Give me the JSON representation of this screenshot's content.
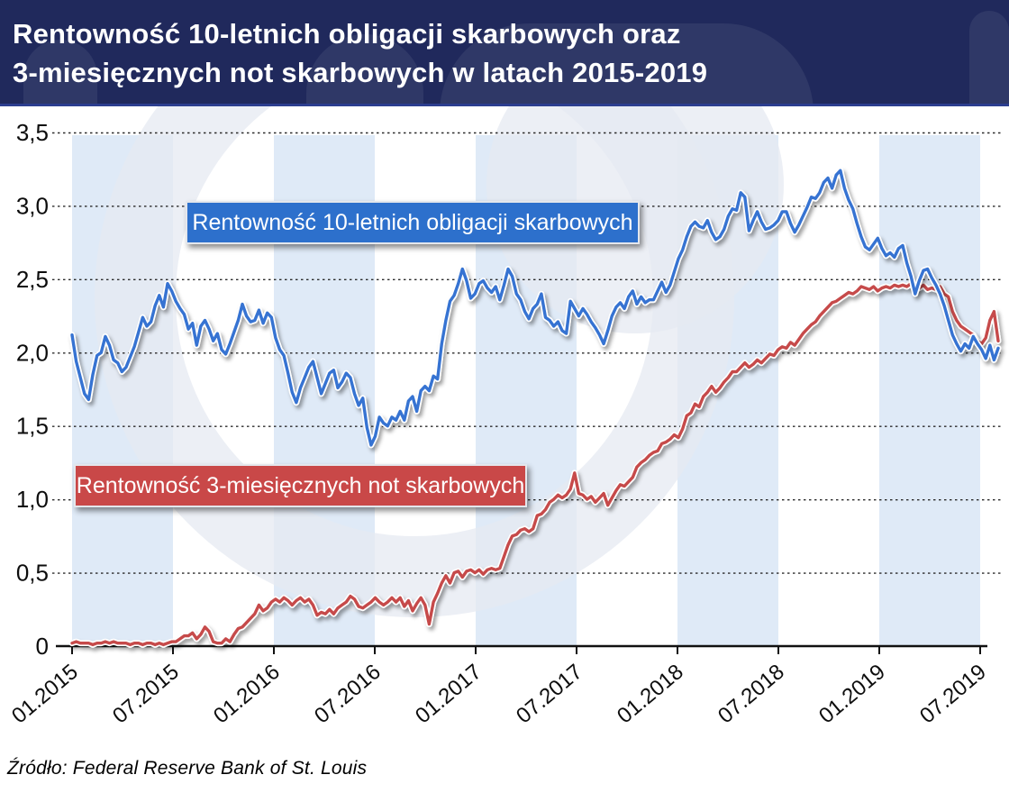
{
  "header": {
    "title_line1": "Rentowność 10-letnich obligacji skarbowych oraz",
    "title_line2": "3-miesięcznych not skarbowych w latach 2015-2019"
  },
  "source_label": "Źródło: Federal Reserve Bank of St. Louis",
  "colors": {
    "header_bg": "#20295c",
    "bond_line": "#3673d2",
    "note_line": "#c64a4a",
    "legend_bond_bg": "#2d70cc",
    "legend_note_bg": "#c94848",
    "stripe": "rgba(185,208,238,0.45)",
    "watermark": "rgba(229,234,242,0.75)",
    "grid": "#2b2b2b",
    "axis": "#111111"
  },
  "chart_data": {
    "type": "line",
    "title": "Rentowność 10-letnich obligacji skarbowych oraz 3-miesięcznych not skarbowych w latach 2015-2019",
    "xlabel": "",
    "ylabel": "",
    "ylim": [
      0,
      3.5
    ],
    "y_tick_values": [
      3.5,
      3.0,
      2.5,
      2.0,
      1.5,
      1.0,
      0.5,
      0
    ],
    "y_tick_labels": [
      "3,5",
      "3,0",
      "2,5",
      "2,0",
      "1,5",
      "1,0",
      "0,5",
      "0"
    ],
    "x_tick_labels": [
      "01.2015",
      "07.2015",
      "01.2016",
      "07.2016",
      "01.2017",
      "07.2017",
      "01.2018",
      "07.2018",
      "01.2019",
      "07.2019"
    ],
    "grid": "dotted-horizontal",
    "legend_position": "inside-callouts",
    "source": "Federal Reserve Bank of St. Louis",
    "sampling": "weekly, 01.2015 - 08.2019, values in percent",
    "series": [
      {
        "name": "Rentowność 10-letnich obligacji skarbowych",
        "color": "#3673d2",
        "values": [
          2.12,
          1.94,
          1.83,
          1.72,
          1.68,
          1.85,
          1.98,
          2.0,
          2.11,
          2.05,
          1.95,
          1.93,
          1.87,
          1.9,
          1.97,
          2.04,
          2.14,
          2.24,
          2.18,
          2.21,
          2.32,
          2.39,
          2.31,
          2.47,
          2.42,
          2.35,
          2.3,
          2.26,
          2.16,
          2.2,
          2.05,
          2.18,
          2.22,
          2.16,
          2.08,
          2.13,
          2.02,
          1.99,
          2.06,
          2.14,
          2.22,
          2.33,
          2.25,
          2.21,
          2.22,
          2.29,
          2.2,
          2.27,
          2.24,
          2.1,
          2.02,
          1.98,
          1.86,
          1.73,
          1.66,
          1.76,
          1.83,
          1.9,
          1.94,
          1.83,
          1.72,
          1.79,
          1.86,
          1.88,
          1.76,
          1.8,
          1.86,
          1.83,
          1.72,
          1.64,
          1.69,
          1.49,
          1.37,
          1.43,
          1.56,
          1.52,
          1.5,
          1.56,
          1.54,
          1.6,
          1.54,
          1.67,
          1.7,
          1.6,
          1.74,
          1.77,
          1.74,
          1.84,
          1.82,
          2.06,
          2.22,
          2.35,
          2.39,
          2.47,
          2.57,
          2.49,
          2.37,
          2.4,
          2.47,
          2.49,
          2.44,
          2.41,
          2.45,
          2.36,
          2.46,
          2.57,
          2.52,
          2.4,
          2.36,
          2.28,
          2.23,
          2.3,
          2.33,
          2.4,
          2.24,
          2.22,
          2.18,
          2.21,
          2.15,
          2.13,
          2.35,
          2.3,
          2.25,
          2.3,
          2.26,
          2.21,
          2.17,
          2.12,
          2.06,
          2.15,
          2.25,
          2.31,
          2.34,
          2.3,
          2.38,
          2.42,
          2.33,
          2.38,
          2.34,
          2.36,
          2.36,
          2.42,
          2.48,
          2.41,
          2.46,
          2.55,
          2.64,
          2.7,
          2.79,
          2.86,
          2.89,
          2.86,
          2.85,
          2.9,
          2.82,
          2.77,
          2.79,
          2.84,
          2.93,
          2.98,
          2.97,
          3.09,
          3.06,
          2.83,
          2.9,
          2.96,
          2.89,
          2.84,
          2.85,
          2.87,
          2.9,
          2.96,
          2.96,
          2.88,
          2.82,
          2.87,
          2.93,
          2.99,
          3.06,
          3.05,
          3.09,
          3.16,
          3.19,
          3.12,
          3.21,
          3.24,
          3.12,
          3.04,
          2.98,
          2.88,
          2.79,
          2.72,
          2.7,
          2.74,
          2.78,
          2.71,
          2.66,
          2.68,
          2.65,
          2.71,
          2.73,
          2.61,
          2.52,
          2.4,
          2.49,
          2.56,
          2.57,
          2.51,
          2.46,
          2.4,
          2.32,
          2.22,
          2.12,
          2.06,
          2.01,
          2.06,
          2.03,
          2.11,
          2.06,
          2.02,
          1.96,
          2.05,
          1.95,
          2.03
        ]
      },
      {
        "name": "Rentowność 3-miesięcznych not skarbowych",
        "color": "#c64a4a",
        "values": [
          0.02,
          0.03,
          0.02,
          0.02,
          0.02,
          0.01,
          0.02,
          0.02,
          0.03,
          0.02,
          0.03,
          0.02,
          0.02,
          0.02,
          0.01,
          0.02,
          0.02,
          0.01,
          0.02,
          0.02,
          0.01,
          0.02,
          0.01,
          0.02,
          0.03,
          0.03,
          0.05,
          0.07,
          0.07,
          0.09,
          0.05,
          0.08,
          0.13,
          0.1,
          0.03,
          0.02,
          0.02,
          0.05,
          0.03,
          0.08,
          0.12,
          0.13,
          0.16,
          0.19,
          0.22,
          0.28,
          0.24,
          0.26,
          0.3,
          0.32,
          0.3,
          0.33,
          0.31,
          0.28,
          0.31,
          0.33,
          0.3,
          0.32,
          0.28,
          0.21,
          0.23,
          0.22,
          0.25,
          0.22,
          0.26,
          0.28,
          0.3,
          0.34,
          0.32,
          0.27,
          0.26,
          0.28,
          0.3,
          0.33,
          0.3,
          0.28,
          0.3,
          0.33,
          0.3,
          0.33,
          0.27,
          0.31,
          0.24,
          0.29,
          0.33,
          0.28,
          0.15,
          0.3,
          0.36,
          0.43,
          0.48,
          0.43,
          0.5,
          0.51,
          0.47,
          0.51,
          0.52,
          0.5,
          0.52,
          0.49,
          0.52,
          0.53,
          0.52,
          0.53,
          0.61,
          0.69,
          0.75,
          0.76,
          0.79,
          0.8,
          0.78,
          0.8,
          0.89,
          0.9,
          0.93,
          0.98,
          1.0,
          1.03,
          1.01,
          1.03,
          1.07,
          1.18,
          1.04,
          1.03,
          1.0,
          1.02,
          0.98,
          1.01,
          1.04,
          0.96,
          1.01,
          1.06,
          1.1,
          1.09,
          1.12,
          1.15,
          1.22,
          1.25,
          1.27,
          1.3,
          1.32,
          1.33,
          1.38,
          1.39,
          1.41,
          1.44,
          1.42,
          1.48,
          1.57,
          1.59,
          1.65,
          1.63,
          1.7,
          1.73,
          1.77,
          1.73,
          1.76,
          1.8,
          1.83,
          1.87,
          1.87,
          1.9,
          1.93,
          1.9,
          1.92,
          1.95,
          1.93,
          1.96,
          1.99,
          1.98,
          2.02,
          2.04,
          2.03,
          2.07,
          2.05,
          2.09,
          2.13,
          2.16,
          2.19,
          2.21,
          2.25,
          2.28,
          2.31,
          2.34,
          2.35,
          2.37,
          2.39,
          2.41,
          2.4,
          2.42,
          2.45,
          2.44,
          2.43,
          2.45,
          2.42,
          2.44,
          2.45,
          2.44,
          2.46,
          2.45,
          2.46,
          2.45,
          2.47,
          2.43,
          2.44,
          2.46,
          2.43,
          2.44,
          2.43,
          2.45,
          2.4,
          2.38,
          2.28,
          2.22,
          2.18,
          2.16,
          2.14,
          2.12,
          2.08,
          2.06,
          2.1,
          2.22,
          2.28,
          2.08
        ]
      }
    ]
  }
}
